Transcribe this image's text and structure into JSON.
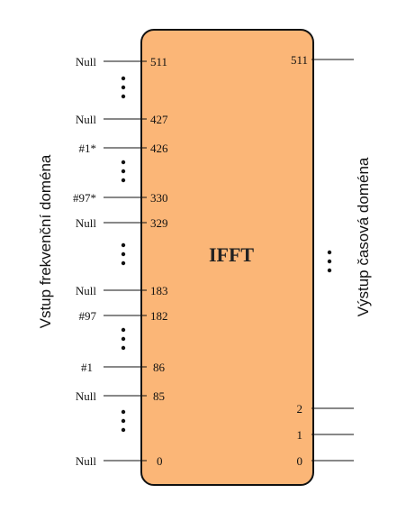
{
  "block": {
    "title": "IFFT",
    "fill_color": "#fbb677",
    "stroke_color": "#111111"
  },
  "side_labels": {
    "left": "Vstup frekvenční doména",
    "right": "Výstup časová doména"
  },
  "inputs": [
    {
      "label": "Null",
      "index": "511"
    },
    {
      "label": "Null",
      "index": "427"
    },
    {
      "label": "#1*",
      "index": "426"
    },
    {
      "label": "#97*",
      "index": "330"
    },
    {
      "label": "Null",
      "index": "329"
    },
    {
      "label": "Null",
      "index": "183"
    },
    {
      "label": "#97",
      "index": "182"
    },
    {
      "label": "#1",
      "index": "86"
    },
    {
      "label": "Null",
      "index": "85"
    },
    {
      "label": "Null",
      "index": "0"
    }
  ],
  "outputs": [
    {
      "index": "511"
    },
    {
      "index": "2"
    },
    {
      "index": "1"
    },
    {
      "index": "0"
    }
  ]
}
